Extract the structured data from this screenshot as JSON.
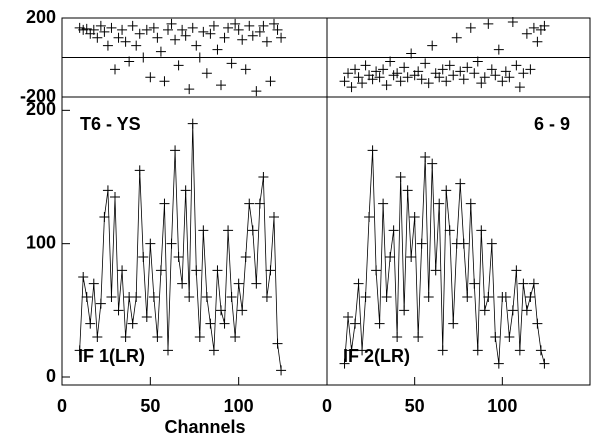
{
  "chart_data": [
    {
      "type": "line",
      "title": "T6 - YS",
      "annotation": "IF 1(LR)",
      "x_label": "Channels",
      "x": [
        10,
        12,
        14,
        16,
        18,
        20,
        22,
        24,
        26,
        28,
        30,
        32,
        34,
        36,
        38,
        40,
        42,
        44,
        46,
        48,
        50,
        52,
        54,
        56,
        58,
        60,
        62,
        64,
        66,
        68,
        70,
        72,
        74,
        76,
        78,
        80,
        82,
        84,
        86,
        88,
        90,
        92,
        94,
        96,
        98,
        100,
        102,
        104,
        106,
        108,
        110,
        112,
        114,
        116,
        118,
        120,
        122,
        124
      ],
      "xlim": [
        0,
        150
      ],
      "xticks": [
        0,
        50,
        100
      ],
      "phase": {
        "ylim": [
          -200,
          200
        ],
        "yticks": [
          -200,
          200
        ],
        "values": [
          150,
          140,
          145,
          120,
          140,
          100,
          160,
          130,
          60,
          150,
          -60,
          100,
          140,
          80,
          -20,
          160,
          60,
          120,
          0,
          140,
          -100,
          150,
          100,
          30,
          -120,
          140,
          170,
          90,
          -40,
          140,
          110,
          -160,
          150,
          60,
          0,
          130,
          -80,
          120,
          160,
          40,
          -140,
          100,
          150,
          -30,
          170,
          140,
          90,
          -60,
          160,
          110,
          -170,
          130,
          160,
          80,
          -120,
          170,
          140,
          100
        ]
      },
      "amplitude": {
        "ylim": [
          -6,
          210
        ],
        "yticks": [
          0,
          100,
          200
        ],
        "values": [
          20,
          75,
          60,
          40,
          70,
          30,
          55,
          120,
          140,
          60,
          135,
          50,
          80,
          30,
          60,
          40,
          60,
          155,
          90,
          45,
          100,
          60,
          30,
          80,
          130,
          20,
          100,
          170,
          90,
          70,
          140,
          60,
          190,
          80,
          30,
          110,
          60,
          40,
          20,
          80,
          50,
          40,
          110,
          60,
          30,
          70,
          50,
          90,
          130,
          110,
          70,
          130,
          150,
          60,
          80,
          120,
          25,
          5
        ]
      }
    },
    {
      "type": "line",
      "title": "6 - 9",
      "annotation": "IF 2(LR)",
      "x": [
        10,
        12,
        14,
        16,
        18,
        20,
        22,
        24,
        26,
        28,
        30,
        32,
        34,
        36,
        38,
        40,
        42,
        44,
        46,
        48,
        50,
        52,
        54,
        56,
        58,
        60,
        62,
        64,
        66,
        68,
        70,
        72,
        74,
        76,
        78,
        80,
        82,
        84,
        86,
        88,
        90,
        92,
        94,
        96,
        98,
        100,
        102,
        104,
        106,
        108,
        110,
        112,
        114,
        116,
        118,
        120,
        122,
        124
      ],
      "xlim": [
        0,
        150
      ],
      "xticks": [
        0,
        50,
        100
      ],
      "phase": {
        "ylim": [
          -200,
          200
        ],
        "values": [
          -120,
          -80,
          -150,
          -60,
          -100,
          -130,
          -40,
          -90,
          -110,
          -70,
          -100,
          -60,
          -140,
          -20,
          -90,
          -80,
          -120,
          -50,
          -100,
          20,
          -90,
          -70,
          -110,
          -30,
          -130,
          60,
          -80,
          -100,
          -60,
          -120,
          -40,
          -90,
          100,
          -70,
          -110,
          -50,
          150,
          -80,
          -20,
          -130,
          -100,
          170,
          -60,
          -90,
          40,
          -120,
          -70,
          -100,
          180,
          -40,
          -150,
          -80,
          120,
          -60,
          150,
          80,
          140,
          160
        ]
      },
      "amplitude": {
        "ylim": [
          -6,
          210
        ],
        "values": [
          10,
          45,
          20,
          40,
          70,
          20,
          60,
          120,
          170,
          80,
          40,
          130,
          60,
          90,
          110,
          30,
          150,
          50,
          140,
          90,
          120,
          30,
          100,
          165,
          60,
          160,
          80,
          130,
          20,
          140,
          110,
          40,
          100,
          145,
          100,
          60,
          130,
          70,
          20,
          110,
          50,
          60,
          100,
          30,
          10,
          60,
          60,
          30,
          50,
          80,
          20,
          70,
          50,
          60,
          70,
          40,
          20,
          10
        ]
      }
    }
  ]
}
